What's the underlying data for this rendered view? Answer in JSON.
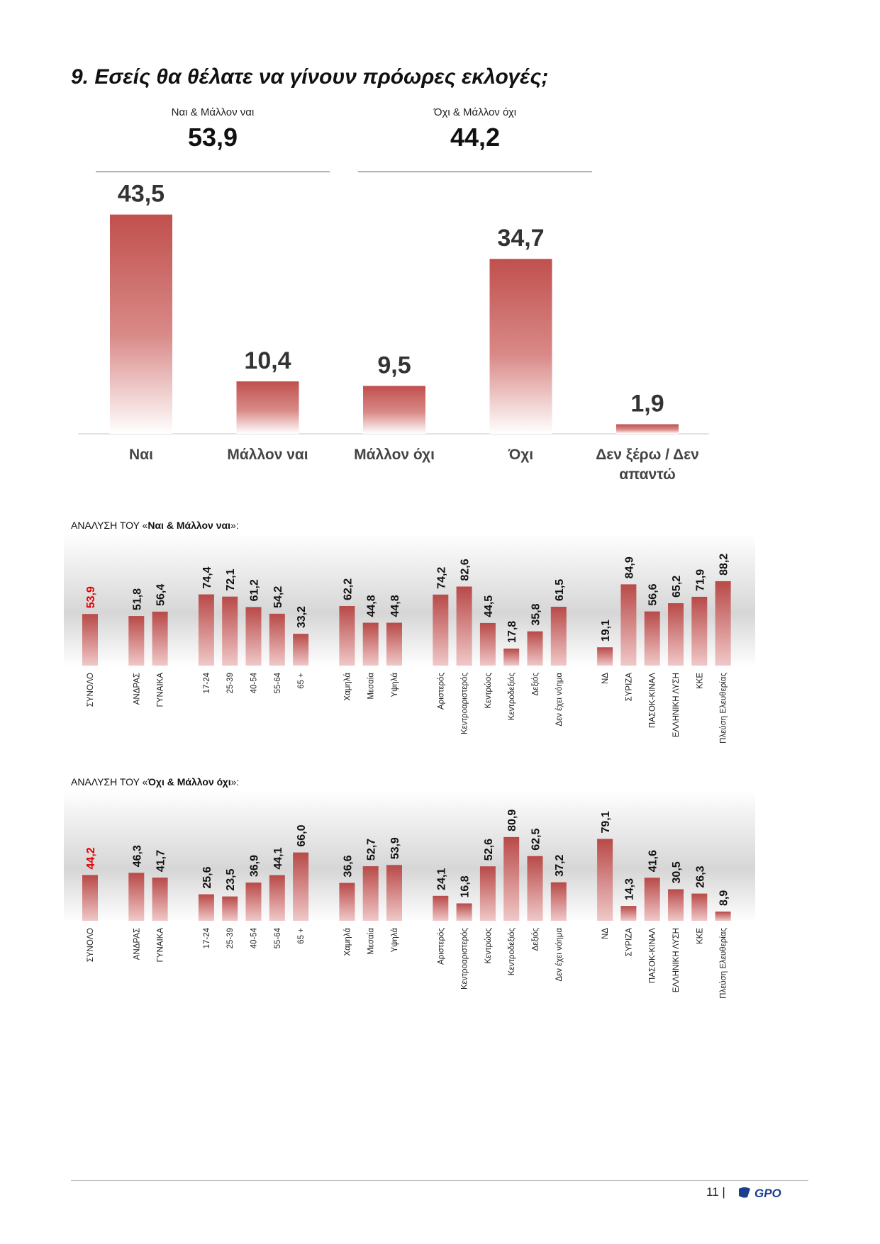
{
  "title": "9. Εσείς θα θέλατε να γίνουν πρόωρες εκλογές;",
  "summary": {
    "yes": {
      "label": "Ναι & Μάλλον ναι",
      "value": "53,9"
    },
    "no": {
      "label": "Όχι & Μάλλον όχι",
      "value": "44,2"
    }
  },
  "chart_data": [
    {
      "type": "bar",
      "categories": [
        "Ναι",
        "Μάλλον ναι",
        "Μάλλον όχι",
        "Όχι",
        "Δεν ξέρω / Δεν απαντώ"
      ],
      "values": [
        43.5,
        10.4,
        9.5,
        34.7,
        1.9
      ],
      "value_labels": [
        "43,5",
        "10,4",
        "9,5",
        "34,7",
        "1,9"
      ],
      "ylim": [
        0,
        45
      ]
    },
    {
      "type": "bar",
      "title_prefix": "ΑΝΑΛΥΣΗ ΤΟΥ «",
      "title_bold": "Ναι & Μάλλον ναι",
      "title_suffix": "»:",
      "categories": [
        "ΣΥΝΟΛΟ",
        "ΑΝΔΡΑΣ",
        "ΓΥΝΑΙΚΑ",
        "17-24",
        "25-39",
        "40-54",
        "55-64",
        "65 +",
        "Χαμηλά",
        "Μεσαία",
        "Υψηλά",
        "Αριστερός",
        "Κεντροαριστερός",
        "Κεντρώος",
        "Κεντροδεξιός",
        "Δεξιός",
        "Δεν έχει νόημα",
        "ΝΔ",
        "ΣΥΡΙΖΑ",
        "ΠΑΣΟΚ-ΚΙΝΑΛ",
        "ΕΛΛΗΝΙΚΗ ΛΥΣΗ",
        "ΚΚΕ",
        "Πλεύση Ελευθερίας"
      ],
      "groups": [
        1,
        2,
        5,
        3,
        6,
        6
      ],
      "values": [
        53.9,
        51.8,
        56.4,
        74.4,
        72.1,
        61.2,
        54.2,
        33.2,
        62.2,
        44.8,
        44.8,
        74.2,
        82.6,
        44.5,
        17.8,
        35.8,
        61.5,
        19.1,
        84.9,
        56.6,
        65.2,
        71.9,
        88.2
      ],
      "value_labels": [
        "53,9",
        "51,8",
        "56,4",
        "74,4",
        "72,1",
        "61,2",
        "54,2",
        "33,2",
        "62,2",
        "44,8",
        "44,8",
        "74,2",
        "82,6",
        "44,5",
        "17,8",
        "35,8",
        "61,5",
        "19,1",
        "84,9",
        "56,6",
        "65,2",
        "71,9",
        "88,2"
      ],
      "highlight_color": "#e00000",
      "ylim": [
        0,
        100
      ]
    },
    {
      "type": "bar",
      "title_prefix": "ΑΝΑΛΥΣΗ ΤΟΥ «",
      "title_bold": "Όχι & Μάλλον όχι",
      "title_suffix": "»:",
      "categories": [
        "ΣΥΝΟΛΟ",
        "ΑΝΔΡΑΣ",
        "ΓΥΝΑΙΚΑ",
        "17-24",
        "25-39",
        "40-54",
        "55-64",
        "65 +",
        "Χαμηλά",
        "Μεσαία",
        "Υψηλά",
        "Αριστερός",
        "Κεντροαριστερός",
        "Κεντρώος",
        "Κεντροδεξιός",
        "Δεξιός",
        "Δεν έχει νόημα",
        "ΝΔ",
        "ΣΥΡΙΖΑ",
        "ΠΑΣΟΚ-ΚΙΝΑΛ",
        "ΕΛΛΗΝΙΚΗ ΛΥΣΗ",
        "ΚΚΕ",
        "Πλεύση Ελευθερίας"
      ],
      "groups": [
        1,
        2,
        5,
        3,
        6,
        6
      ],
      "values": [
        44.2,
        46.3,
        41.7,
        25.6,
        23.5,
        36.9,
        44.1,
        66.0,
        36.6,
        52.7,
        53.9,
        24.1,
        16.8,
        52.6,
        80.9,
        62.5,
        37.2,
        79.1,
        14.3,
        41.6,
        30.5,
        26.3,
        8.9
      ],
      "value_labels": [
        "44,2",
        "46,3",
        "41,7",
        "25,6",
        "23,5",
        "36,9",
        "44,1",
        "66,0",
        "36,6",
        "52,7",
        "53,9",
        "24,1",
        "16,8",
        "52,6",
        "80,9",
        "62,5",
        "37,2",
        "79,1",
        "14,3",
        "41,6",
        "30,5",
        "26,3",
        "8,9"
      ],
      "highlight_color": "#e00000",
      "ylim": [
        0,
        100
      ]
    }
  ],
  "colors": {
    "bar_dark": "#c0504d",
    "bar_light": "#f0c8c8",
    "label": "#333333"
  },
  "footer": {
    "page_number": "11 |",
    "logo_text": "GPO"
  }
}
